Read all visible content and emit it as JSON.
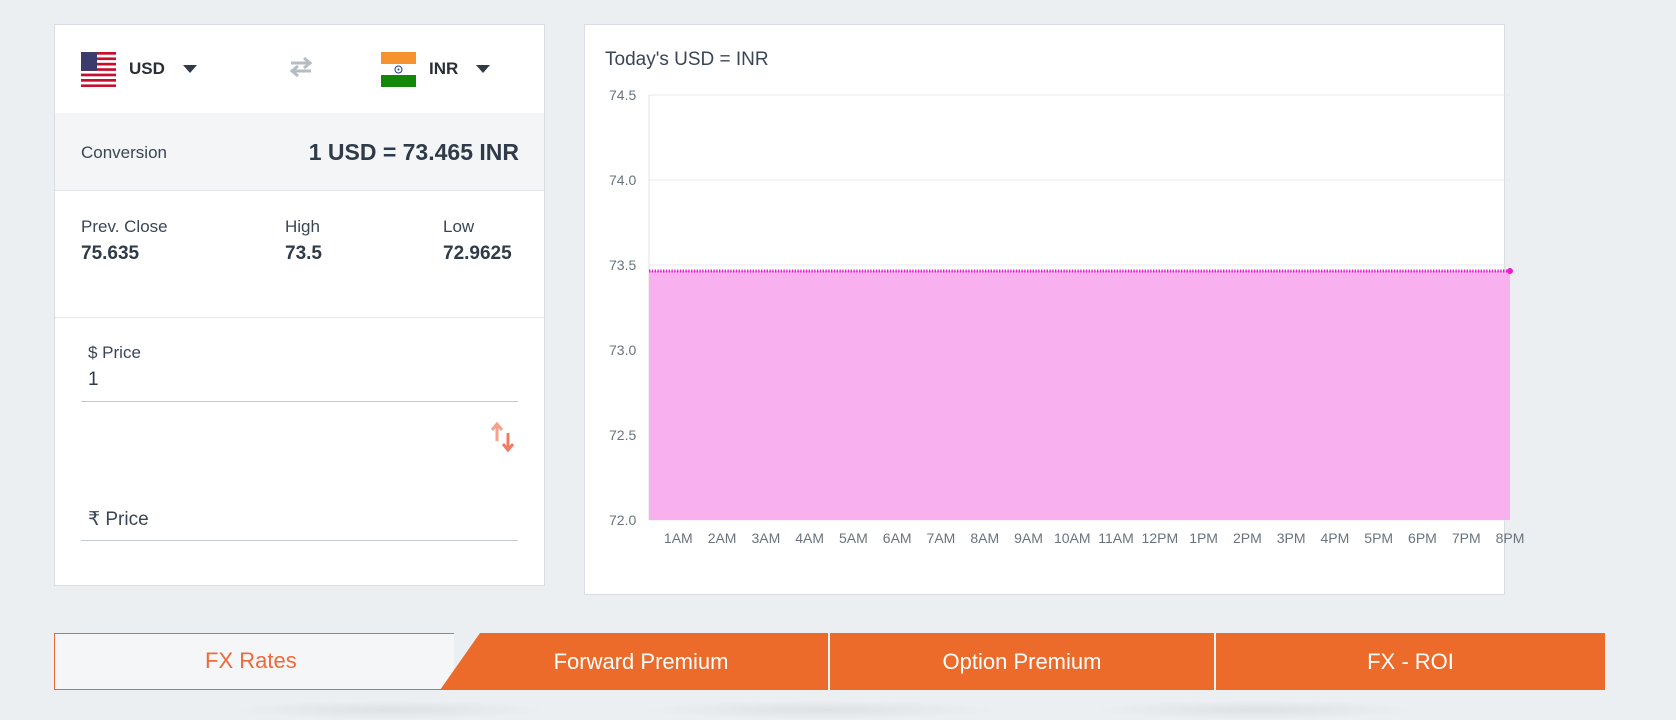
{
  "converter": {
    "from": {
      "code": "USD",
      "flag_icon": "us-flag-icon"
    },
    "to": {
      "code": "INR",
      "flag_icon": "india-flag-icon"
    },
    "conversion_label": "Conversion",
    "conversion_value": "1 USD = 73.465 INR",
    "prev_close_label": "Prev. Close",
    "prev_close_value": "75.635",
    "high_label": "High",
    "high_value": "73.5",
    "low_label": "Low",
    "low_value": "72.9625",
    "usd_price_label": "$ Price",
    "usd_price_value": "1",
    "inr_price_label": "₹ Price",
    "inr_price_value": ""
  },
  "chart": {
    "title": "Today's USD = INR"
  },
  "chart_data": {
    "type": "area",
    "title": "Today's USD = INR",
    "x_ticks": [
      "1AM",
      "2AM",
      "3AM",
      "4AM",
      "5AM",
      "6AM",
      "7AM",
      "8AM",
      "9AM",
      "10AM",
      "11AM",
      "12PM",
      "1PM",
      "2PM",
      "3PM",
      "4PM",
      "5PM",
      "6PM",
      "7PM",
      "8PM"
    ],
    "y_ticks": [
      "74.5",
      "74.0",
      "73.5",
      "73.0",
      "72.5",
      "72.0"
    ],
    "ylim": [
      72.0,
      74.5
    ],
    "x_range_hours": [
      0.33,
      20.0
    ],
    "series": [
      {
        "values": [
          73.465
        ],
        "constant": true
      }
    ],
    "grid": true,
    "line_color": "#e81fcf",
    "fill_color": "#f9b0ee"
  },
  "tabs": [
    "FX Rates",
    "Forward Premium",
    "Option Premium",
    "FX - ROI"
  ],
  "colors": {
    "accent": "#ec6a2a",
    "tab_active_text": "#ee6a3a"
  }
}
